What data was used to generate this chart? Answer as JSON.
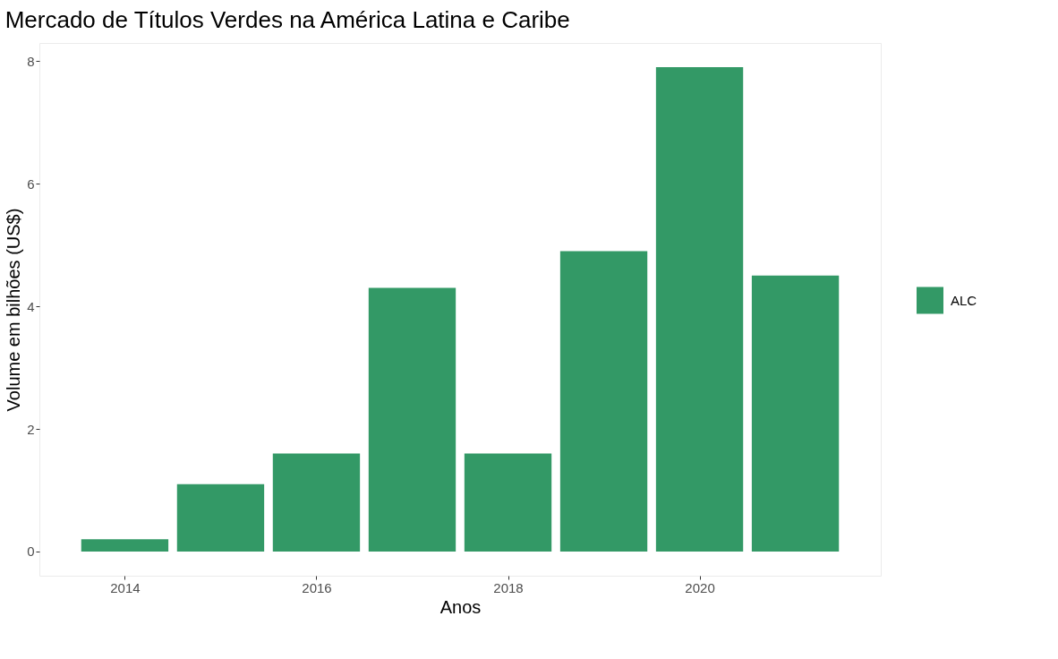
{
  "chart_data": {
    "type": "bar",
    "title": "Mercado de Títulos Verdes na América Latina e Caribe",
    "xlabel": "Anos",
    "ylabel": "Volume em bilhões (US$)",
    "x": [
      2014,
      2015,
      2016,
      2017,
      2018,
      2019,
      2020,
      2021
    ],
    "series": [
      {
        "name": "ALC",
        "color": "#339966",
        "values": [
          0.2,
          1.1,
          1.6,
          4.3,
          1.6,
          4.9,
          7.9,
          4.5
        ]
      }
    ],
    "xlim": [
      2013.155,
      2021.845
    ],
    "xticks": [
      2014,
      2016,
      2018,
      2020
    ],
    "ylim": [
      -0.395,
      8.295
    ],
    "yticks": [
      0,
      2,
      4,
      6,
      8
    ],
    "grid": false,
    "legend": "right"
  }
}
